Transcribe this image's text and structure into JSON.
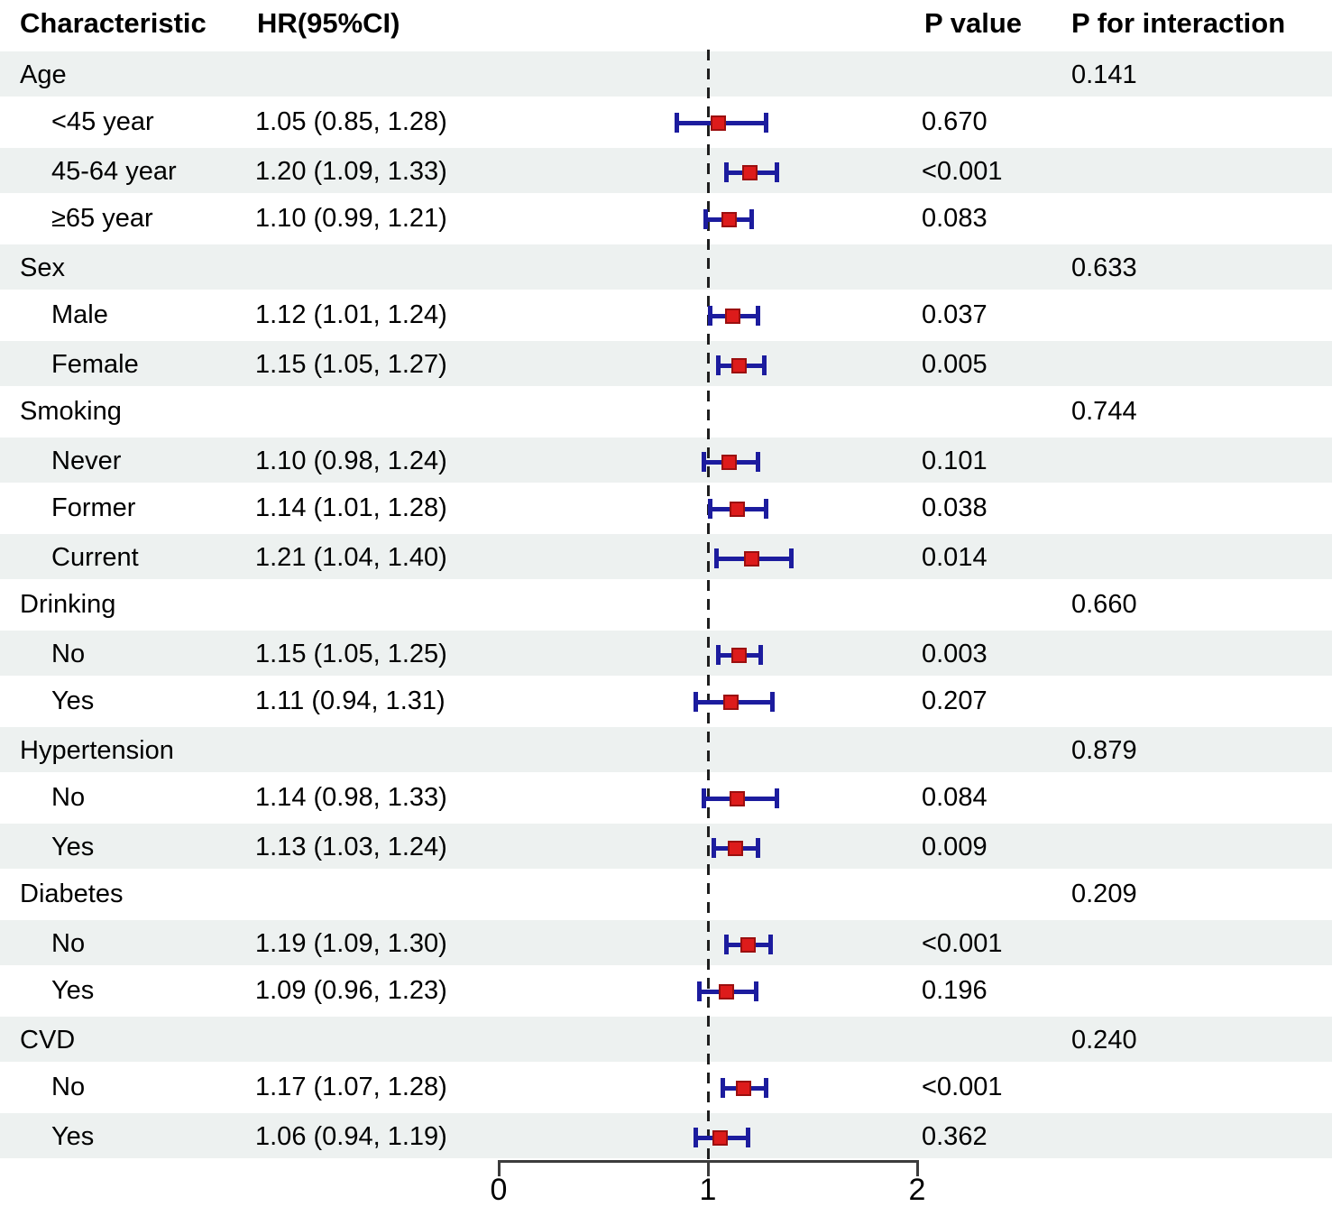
{
  "header": {
    "characteristic": "Characteristic",
    "hr": "HR(95%CI)",
    "p_value": "P value",
    "p_interaction": "P for interaction"
  },
  "colors": {
    "ci_bar": "#1c1c9e",
    "marker_fill": "#dd1b1b",
    "marker_border": "#9b0f0f",
    "row_shade": "#edf1f0",
    "reference_line": "#1f1f1f",
    "axis": "#3c3c3c",
    "text": "#000000"
  },
  "rows": [
    {
      "label": "Age",
      "type": "group",
      "shaded": true,
      "p_interaction": "0.141"
    },
    {
      "label": "<45 year",
      "type": "sub",
      "shaded": false,
      "hr_text": "1.05 (0.85, 1.28)",
      "hr": 1.05,
      "lo": 0.85,
      "hi": 1.28,
      "p": "0.670"
    },
    {
      "label": "45-64 year",
      "type": "sub",
      "shaded": true,
      "hr_text": "1.20 (1.09, 1.33)",
      "hr": 1.2,
      "lo": 1.09,
      "hi": 1.33,
      "p": "<0.001"
    },
    {
      "label": "≥65 year",
      "type": "sub",
      "shaded": false,
      "hr_text": "1.10 (0.99, 1.21)",
      "hr": 1.1,
      "lo": 0.99,
      "hi": 1.21,
      "p": "0.083"
    },
    {
      "label": "Sex",
      "type": "group",
      "shaded": true,
      "p_interaction": "0.633"
    },
    {
      "label": "Male",
      "type": "sub",
      "shaded": false,
      "hr_text": "1.12 (1.01, 1.24)",
      "hr": 1.12,
      "lo": 1.01,
      "hi": 1.24,
      "p": "0.037"
    },
    {
      "label": "Female",
      "type": "sub",
      "shaded": true,
      "hr_text": "1.15 (1.05, 1.27)",
      "hr": 1.15,
      "lo": 1.05,
      "hi": 1.27,
      "p": "0.005"
    },
    {
      "label": "Smoking",
      "type": "group",
      "shaded": false,
      "p_interaction": "0.744"
    },
    {
      "label": "Never",
      "type": "sub",
      "shaded": true,
      "hr_text": "1.10 (0.98, 1.24)",
      "hr": 1.1,
      "lo": 0.98,
      "hi": 1.24,
      "p": "0.101"
    },
    {
      "label": "Former",
      "type": "sub",
      "shaded": false,
      "hr_text": "1.14 (1.01, 1.28)",
      "hr": 1.14,
      "lo": 1.01,
      "hi": 1.28,
      "p": "0.038"
    },
    {
      "label": "Current",
      "type": "sub",
      "shaded": true,
      "hr_text": "1.21 (1.04, 1.40)",
      "hr": 1.21,
      "lo": 1.04,
      "hi": 1.4,
      "p": "0.014"
    },
    {
      "label": "Drinking",
      "type": "group",
      "shaded": false,
      "p_interaction": "0.660"
    },
    {
      "label": "No",
      "type": "sub",
      "shaded": true,
      "hr_text": "1.15 (1.05, 1.25)",
      "hr": 1.15,
      "lo": 1.05,
      "hi": 1.25,
      "p": "0.003"
    },
    {
      "label": "Yes",
      "type": "sub",
      "shaded": false,
      "hr_text": "1.11 (0.94, 1.31)",
      "hr": 1.11,
      "lo": 0.94,
      "hi": 1.31,
      "p": "0.207"
    },
    {
      "label": "Hypertension",
      "type": "group",
      "shaded": true,
      "p_interaction": "0.879"
    },
    {
      "label": "No",
      "type": "sub",
      "shaded": false,
      "hr_text": "1.14 (0.98, 1.33)",
      "hr": 1.14,
      "lo": 0.98,
      "hi": 1.33,
      "p": "0.084"
    },
    {
      "label": "Yes",
      "type": "sub",
      "shaded": true,
      "hr_text": "1.13 (1.03, 1.24)",
      "hr": 1.13,
      "lo": 1.03,
      "hi": 1.24,
      "p": "0.009"
    },
    {
      "label": "Diabetes",
      "type": "group",
      "shaded": false,
      "p_interaction": "0.209"
    },
    {
      "label": "No",
      "type": "sub",
      "shaded": true,
      "hr_text": "1.19 (1.09, 1.30)",
      "hr": 1.19,
      "lo": 1.09,
      "hi": 1.3,
      "p": "<0.001"
    },
    {
      "label": "Yes",
      "type": "sub",
      "shaded": false,
      "hr_text": "1.09 (0.96, 1.23)",
      "hr": 1.09,
      "lo": 0.96,
      "hi": 1.23,
      "p": "0.196"
    },
    {
      "label": "CVD",
      "type": "group",
      "shaded": true,
      "p_interaction": "0.240"
    },
    {
      "label": "No",
      "type": "sub",
      "shaded": false,
      "hr_text": "1.17 (1.07, 1.28)",
      "hr": 1.17,
      "lo": 1.07,
      "hi": 1.28,
      "p": "<0.001"
    },
    {
      "label": "Yes",
      "type": "sub",
      "shaded": true,
      "hr_text": "1.06 (0.94, 1.19)",
      "hr": 1.06,
      "lo": 0.94,
      "hi": 1.19,
      "p": "0.362"
    }
  ],
  "axis": {
    "min": 0,
    "max": 2,
    "ticks": [
      0,
      1,
      2
    ],
    "tick_labels": [
      "0",
      "1",
      "2"
    ],
    "reference_value": 1
  },
  "chart_data": {
    "type": "scatter",
    "subtype": "forest-plot",
    "title": "",
    "xlabel": "",
    "ylabel": "",
    "xlim": [
      0,
      2
    ],
    "x_ticks": [
      0,
      1,
      2
    ],
    "reference_line": 1,
    "grid": false,
    "legend_position": "none",
    "columns": [
      "Characteristic",
      "HR(95%CI)",
      "P value",
      "P for interaction"
    ],
    "groups": [
      {
        "name": "Age",
        "p_interaction": "0.141",
        "subgroups": [
          {
            "label": "<45 year",
            "hr": 1.05,
            "ci": [
              0.85,
              1.28
            ],
            "p": "0.670"
          },
          {
            "label": "45-64 year",
            "hr": 1.2,
            "ci": [
              1.09,
              1.33
            ],
            "p": "<0.001"
          },
          {
            "label": "≥65 year",
            "hr": 1.1,
            "ci": [
              0.99,
              1.21
            ],
            "p": "0.083"
          }
        ]
      },
      {
        "name": "Sex",
        "p_interaction": "0.633",
        "subgroups": [
          {
            "label": "Male",
            "hr": 1.12,
            "ci": [
              1.01,
              1.24
            ],
            "p": "0.037"
          },
          {
            "label": "Female",
            "hr": 1.15,
            "ci": [
              1.05,
              1.27
            ],
            "p": "0.005"
          }
        ]
      },
      {
        "name": "Smoking",
        "p_interaction": "0.744",
        "subgroups": [
          {
            "label": "Never",
            "hr": 1.1,
            "ci": [
              0.98,
              1.24
            ],
            "p": "0.101"
          },
          {
            "label": "Former",
            "hr": 1.14,
            "ci": [
              1.01,
              1.28
            ],
            "p": "0.038"
          },
          {
            "label": "Current",
            "hr": 1.21,
            "ci": [
              1.04,
              1.4
            ],
            "p": "0.014"
          }
        ]
      },
      {
        "name": "Drinking",
        "p_interaction": "0.660",
        "subgroups": [
          {
            "label": "No",
            "hr": 1.15,
            "ci": [
              1.05,
              1.25
            ],
            "p": "0.003"
          },
          {
            "label": "Yes",
            "hr": 1.11,
            "ci": [
              0.94,
              1.31
            ],
            "p": "0.207"
          }
        ]
      },
      {
        "name": "Hypertension",
        "p_interaction": "0.879",
        "subgroups": [
          {
            "label": "No",
            "hr": 1.14,
            "ci": [
              0.98,
              1.33
            ],
            "p": "0.084"
          },
          {
            "label": "Yes",
            "hr": 1.13,
            "ci": [
              1.03,
              1.24
            ],
            "p": "0.009"
          }
        ]
      },
      {
        "name": "Diabetes",
        "p_interaction": "0.209",
        "subgroups": [
          {
            "label": "No",
            "hr": 1.19,
            "ci": [
              1.09,
              1.3
            ],
            "p": "<0.001"
          },
          {
            "label": "Yes",
            "hr": 1.09,
            "ci": [
              0.96,
              1.23
            ],
            "p": "0.196"
          }
        ]
      },
      {
        "name": "CVD",
        "p_interaction": "0.240",
        "subgroups": [
          {
            "label": "No",
            "hr": 1.17,
            "ci": [
              1.07,
              1.28
            ],
            "p": "<0.001"
          },
          {
            "label": "Yes",
            "hr": 1.06,
            "ci": [
              0.94,
              1.19
            ],
            "p": "0.362"
          }
        ]
      }
    ]
  }
}
